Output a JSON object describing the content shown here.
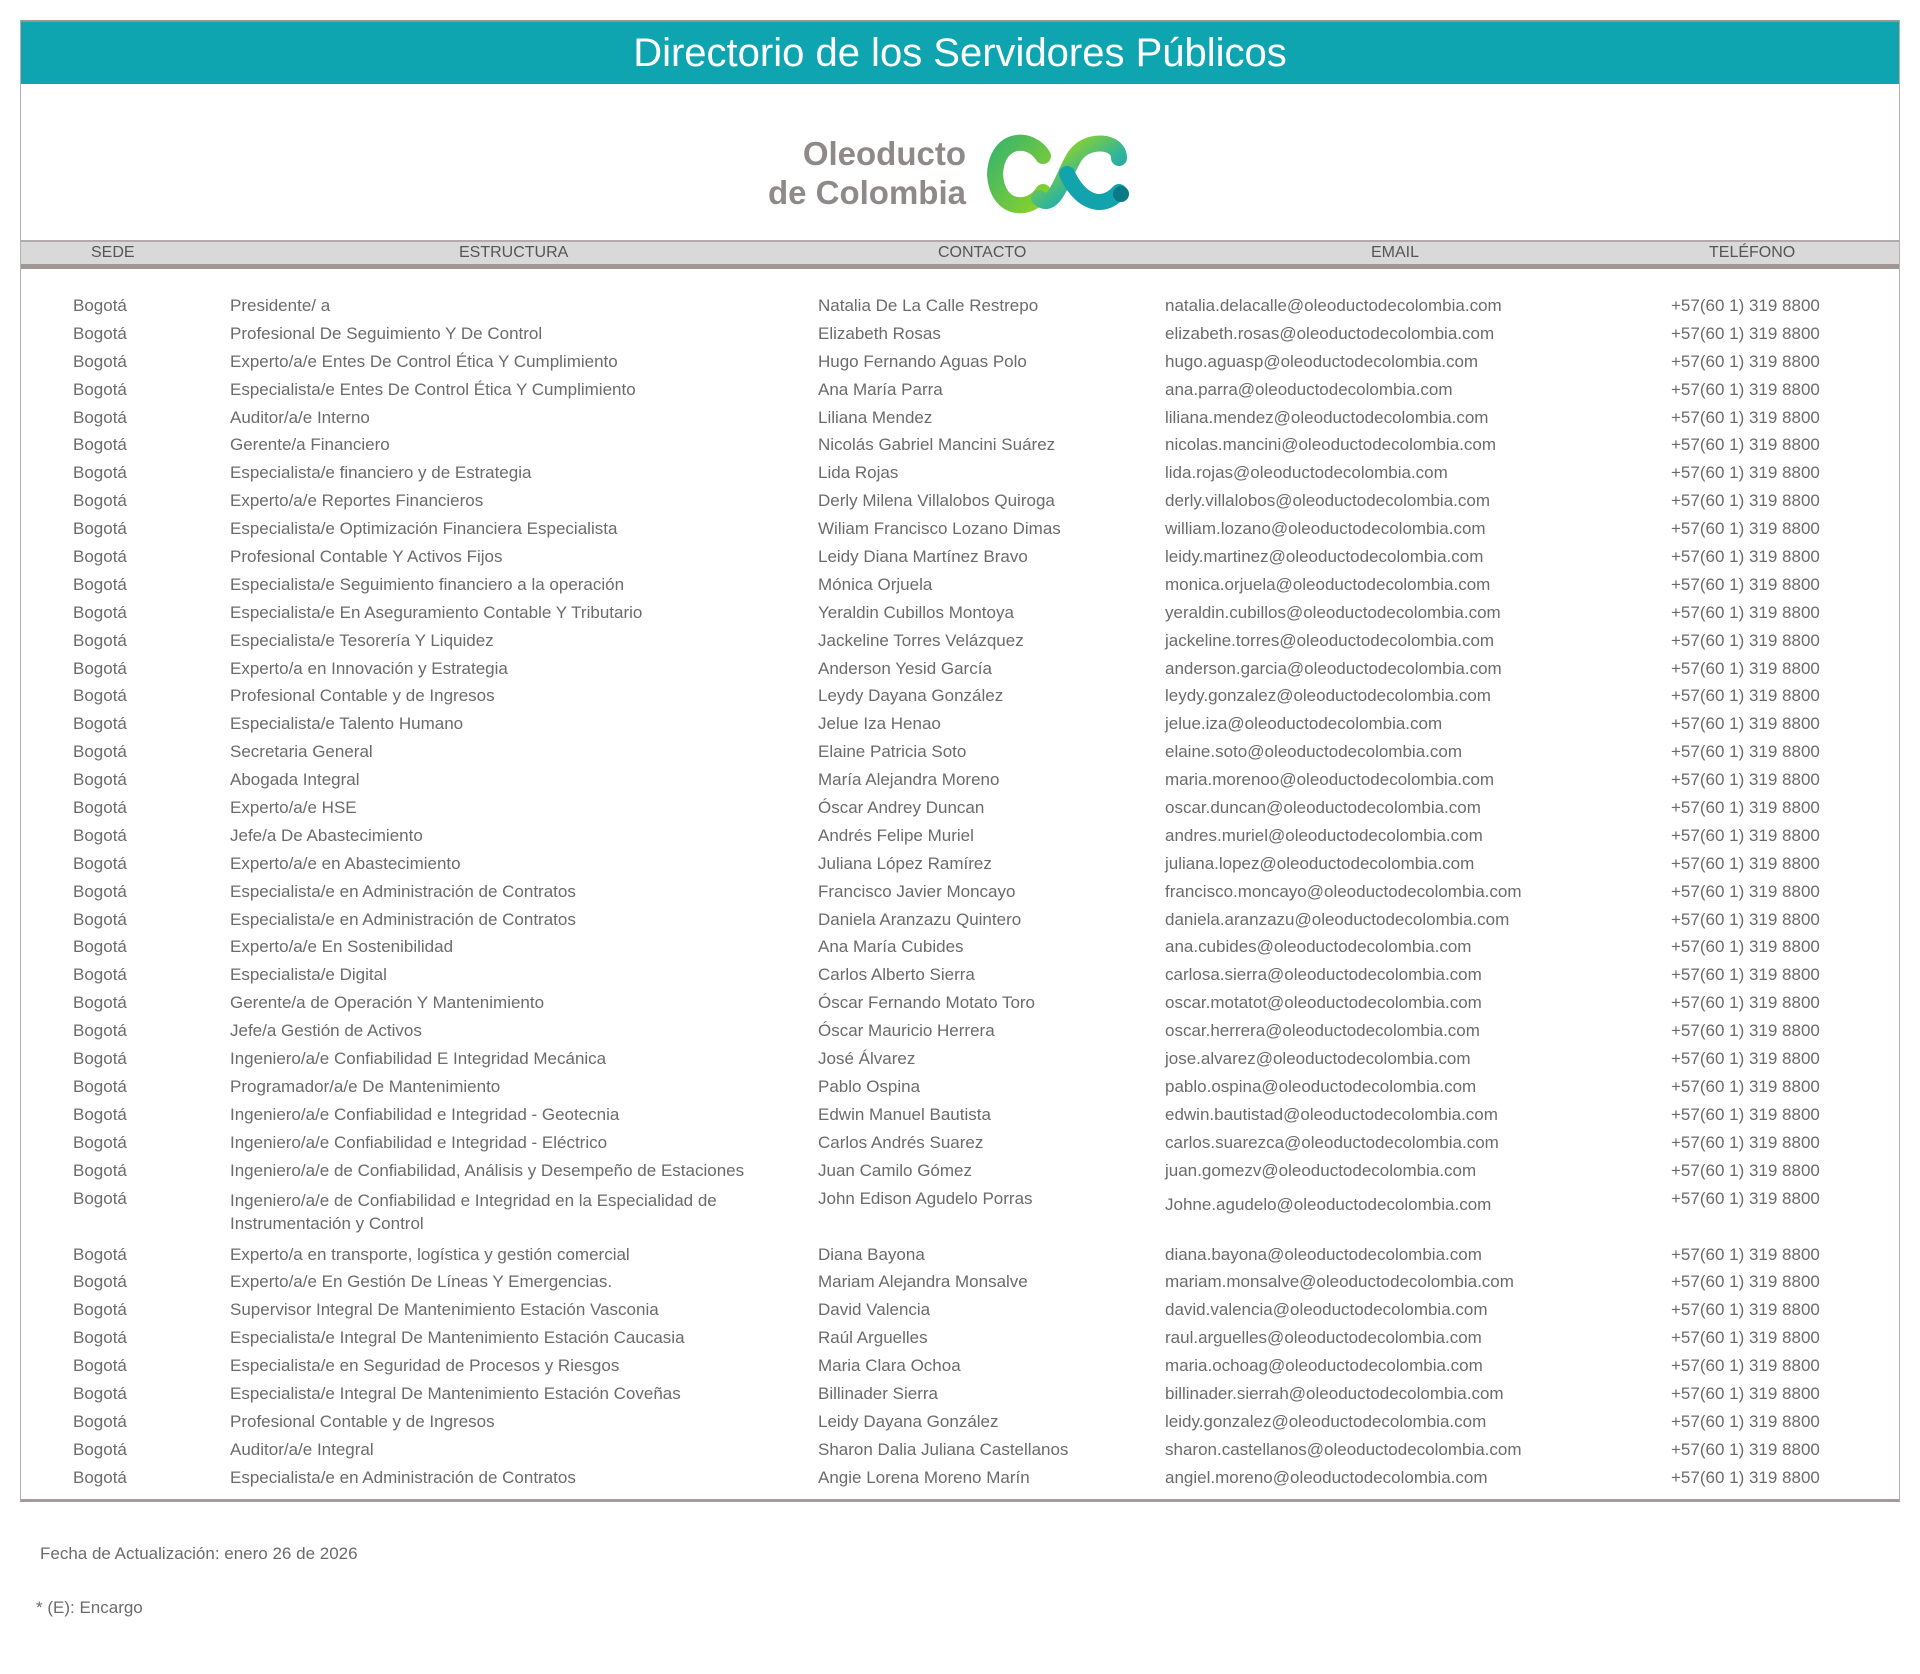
{
  "title": "Directorio de los Servidores Públicos",
  "logo": {
    "line1": "Oleoducto",
    "line2": "de Colombia"
  },
  "colors": {
    "banner": "#0fa5b0",
    "header_band": "#d9d9d9",
    "text": "#6b6b6b"
  },
  "columns": [
    "SEDE",
    "ESTRUCTURA",
    "CONTACTO",
    "EMAIL",
    "TELÉFONO"
  ],
  "rows": [
    [
      "Bogotá",
      "Presidente/ a",
      "Natalia De La Calle Restrepo",
      "natalia.delacalle@oleoductodecolombia.com",
      "+57(60 1) 319 8800"
    ],
    [
      "Bogotá",
      "Profesional De Seguimiento Y De Control",
      "Elizabeth Rosas",
      "elizabeth.rosas@oleoductodecolombia.com",
      "+57(60 1) 319 8800"
    ],
    [
      "Bogotá",
      "Experto/a/e  Entes De Control Ética Y Cumplimiento",
      "Hugo Fernando Aguas Polo",
      "hugo.aguasp@oleoductodecolombia.com",
      "+57(60 1) 319 8800"
    ],
    [
      "Bogotá",
      "Especialista/e Entes De Control Ética Y Cumplimiento",
      "Ana María Parra",
      "ana.parra@oleoductodecolombia.com",
      "+57(60 1) 319 8800"
    ],
    [
      "Bogotá",
      "Auditor/a/e Interno",
      "Liliana Mendez",
      "liliana.mendez@oleoductodecolombia.com",
      "+57(60 1) 319 8800"
    ],
    [
      "Bogotá",
      "Gerente/a Financiero",
      "Nicolás Gabriel Mancini Suárez",
      "nicolas.mancini@oleoductodecolombia.com",
      "+57(60 1) 319 8800"
    ],
    [
      "Bogotá",
      "Especialista/e financiero y de Estrategia",
      "Lida Rojas",
      "lida.rojas@oleoductodecolombia.com",
      "+57(60 1) 319 8800"
    ],
    [
      "Bogotá",
      "Experto/a/e Reportes Financieros",
      "Derly Milena Villalobos Quiroga",
      "derly.villalobos@oleoductodecolombia.com",
      "+57(60 1) 319 8800"
    ],
    [
      "Bogotá",
      "Especialista/e Optimización Financiera Especialista",
      "Wiliam Francisco Lozano Dimas",
      "william.lozano@oleoductodecolombia.com",
      "+57(60 1) 319 8800"
    ],
    [
      "Bogotá",
      "Profesional Contable Y Activos Fijos",
      "Leidy Diana Martínez Bravo",
      "leidy.martinez@oleoductodecolombia.com",
      "+57(60 1) 319 8800"
    ],
    [
      "Bogotá",
      "Especialista/e Seguimiento financiero a la operación",
      "Mónica Orjuela",
      "monica.orjuela@oleoductodecolombia.com",
      "+57(60 1) 319 8800"
    ],
    [
      "Bogotá",
      "Especialista/e  En Aseguramiento Contable Y Tributario",
      "Yeraldin Cubillos Montoya",
      "yeraldin.cubillos@oleoductodecolombia.com",
      "+57(60 1) 319 8800"
    ],
    [
      "Bogotá",
      "Especialista/e Tesorería Y Liquidez",
      "Jackeline Torres Velázquez",
      "jackeline.torres@oleoductodecolombia.com",
      "+57(60 1) 319 8800"
    ],
    [
      "Bogotá",
      "Experto/a en Innovación y Estrategia",
      "Anderson Yesid García",
      "anderson.garcia@oleoductodecolombia.com",
      "+57(60 1) 319 8800"
    ],
    [
      "Bogotá",
      "Profesional Contable y de Ingresos",
      "Leydy Dayana González",
      "leydy.gonzalez@oleoductodecolombia.com",
      "+57(60 1) 319 8800"
    ],
    [
      "Bogotá",
      "Especialista/e Talento Humano",
      "Jelue Iza Henao",
      "jelue.iza@oleoductodecolombia.com",
      "+57(60 1) 319 8800"
    ],
    [
      "Bogotá",
      "Secretaria General",
      "Elaine Patricia Soto",
      "elaine.soto@oleoductodecolombia.com",
      "+57(60 1) 319 8800"
    ],
    [
      "Bogotá",
      "Abogada Integral",
      "María Alejandra Moreno",
      "maria.morenoo@oleoductodecolombia.com",
      "+57(60 1) 319 8800"
    ],
    [
      "Bogotá",
      "Experto/a/e HSE",
      "Óscar Andrey Duncan",
      "oscar.duncan@oleoductodecolombia.com",
      "+57(60 1) 319 8800"
    ],
    [
      "Bogotá",
      "Jefe/a De Abastecimiento",
      "Andrés Felipe Muriel",
      "andres.muriel@oleoductodecolombia.com",
      "+57(60 1) 319 8800"
    ],
    [
      "Bogotá",
      "Experto/a/e en Abastecimiento",
      "Juliana López Ramírez",
      "juliana.lopez@oleoductodecolombia.com",
      "+57(60 1) 319 8800"
    ],
    [
      "Bogotá",
      "Especialista/e en Administración de Contratos",
      "Francisco Javier Moncayo",
      "francisco.moncayo@oleoductodecolombia.com",
      "+57(60 1) 319 8800"
    ],
    [
      "Bogotá",
      "Especialista/e en Administración de Contratos",
      "Daniela Aranzazu Quintero",
      "daniela.aranzazu@oleoductodecolombia.com",
      "+57(60 1) 319 8800"
    ],
    [
      "Bogotá",
      "Experto/a/e En Sostenibilidad",
      "Ana María Cubides",
      "ana.cubides@oleoductodecolombia.com",
      "+57(60 1) 319 8800"
    ],
    [
      "Bogotá",
      "Especialista/e Digital",
      "Carlos Alberto Sierra",
      "carlosa.sierra@oleoductodecolombia.com",
      "+57(60 1) 319 8800"
    ],
    [
      "Bogotá",
      "Gerente/a de Operación Y Mantenimiento",
      "Óscar Fernando Motato Toro",
      "oscar.motatot@oleoductodecolombia.com",
      "+57(60 1) 319 8800"
    ],
    [
      "Bogotá",
      "Jefe/a  Gestión de Activos",
      "Óscar Mauricio Herrera",
      "oscar.herrera@oleoductodecolombia.com",
      "+57(60 1) 319 8800"
    ],
    [
      "Bogotá",
      "Ingeniero/a/e Confiabilidad E Integridad Mecánica",
      "José Álvarez",
      "jose.alvarez@oleoductodecolombia.com",
      "+57(60 1) 319 8800"
    ],
    [
      "Bogotá",
      "Programador/a/e De Mantenimiento",
      "Pablo Ospina",
      "pablo.ospina@oleoductodecolombia.com",
      "+57(60 1) 319 8800"
    ],
    [
      "Bogotá",
      "Ingeniero/a/e Confiabilidad e  Integridad - Geotecnia",
      "Edwin Manuel Bautista",
      "edwin.bautistad@oleoductodecolombia.com",
      "+57(60 1) 319 8800"
    ],
    [
      "Bogotá",
      "Ingeniero/a/e Confiabilidad e  Integridad - Eléctrico",
      "Carlos Andrés Suarez",
      "carlos.suarezca@oleoductodecolombia.com",
      "+57(60 1) 319 8800"
    ],
    [
      "Bogotá",
      "Ingeniero/a/e de Confiabilidad, Análisis y Desempeño de Estaciones",
      "Juan Camilo Gómez",
      "juan.gomezv@oleoductodecolombia.com",
      "+57(60 1) 319 8800"
    ],
    [
      "Bogotá",
      "Ingeniero/a/e de Confiabilidad e Integridad en la Especialidad de Instrumentación y Control",
      "John Edison Agudelo Porras",
      "Johne.agudelo@oleoductodecolombia.com",
      "+57(60 1) 319 8800"
    ],
    [
      "Bogotá",
      "Experto/a en transporte, logística y gestión comercial",
      "Diana Bayona",
      "diana.bayona@oleoductodecolombia.com",
      "+57(60 1) 319 8800"
    ],
    [
      "Bogotá",
      "Experto/a/e En Gestión De Líneas Y Emergencias.",
      "Mariam Alejandra Monsalve",
      "mariam.monsalve@oleoductodecolombia.com",
      "+57(60 1) 319 8800"
    ],
    [
      "Bogotá",
      "Supervisor Integral De Mantenimiento  Estación  Vasconia",
      "David Valencia",
      "david.valencia@oleoductodecolombia.com",
      "+57(60 1) 319 8800"
    ],
    [
      "Bogotá",
      "Especialista/e Integral De Mantenimiento Estación Caucasia",
      "Raúl Arguelles",
      "raul.arguelles@oleoductodecolombia.com",
      "+57(60 1) 319 8800"
    ],
    [
      "Bogotá",
      "Especialista/e en Seguridad de Procesos y Riesgos",
      "Maria Clara Ochoa",
      "maria.ochoag@oleoductodecolombia.com",
      "+57(60 1) 319 8800"
    ],
    [
      "Bogotá",
      "Especialista/e Integral De Mantenimiento Estación Coveñas",
      "Billinader Sierra",
      "billinader.sierrah@oleoductodecolombia.com",
      "+57(60 1) 319 8800"
    ],
    [
      "Bogotá",
      "Profesional Contable y de Ingresos",
      "Leidy Dayana González",
      "leidy.gonzalez@oleoductodecolombia.com",
      "+57(60 1) 319 8800"
    ],
    [
      "Bogotá",
      "Auditor/a/e Integral",
      "Sharon Dalia Juliana Castellanos",
      "sharon.castellanos@oleoductodecolombia.com",
      "+57(60 1) 319 8800"
    ],
    [
      "Bogotá",
      "Especialista/e en Administración de Contratos",
      "Angie Lorena Moreno Marín",
      "angiel.moreno@oleoductodecolombia.com",
      "+57(60 1) 319 8800"
    ]
  ],
  "footer": {
    "updated": "Fecha de Actualización: enero 26 de 2026",
    "note": "* (E): Encargo"
  }
}
